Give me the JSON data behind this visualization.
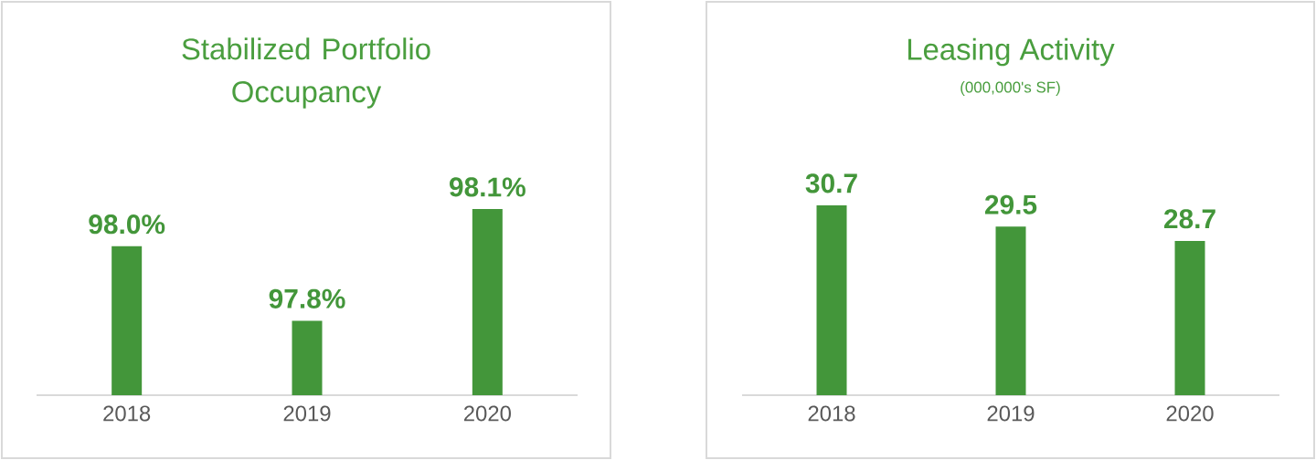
{
  "chart_data": [
    {
      "type": "bar",
      "title": "Stabilized Portfolio Occupancy",
      "categories": [
        "2018",
        "2019",
        "2020"
      ],
      "values": [
        98.0,
        97.8,
        98.1
      ],
      "value_labels": [
        "98.0%",
        "97.8%",
        "98.1%"
      ],
      "color": "#43963a",
      "ylim": [
        97.6,
        98.1
      ],
      "tick_labels": "x"
    },
    {
      "type": "bar",
      "title": "Leasing Activity",
      "subtitle": "(000,000's SF)",
      "categories": [
        "2018",
        "2019",
        "2020"
      ],
      "values": [
        30.7,
        29.5,
        28.7
      ],
      "value_labels": [
        "30.7",
        "29.5",
        "28.7"
      ],
      "color": "#43963a",
      "ylim": [
        20.0,
        30.7
      ],
      "tick_labels": "x"
    }
  ]
}
